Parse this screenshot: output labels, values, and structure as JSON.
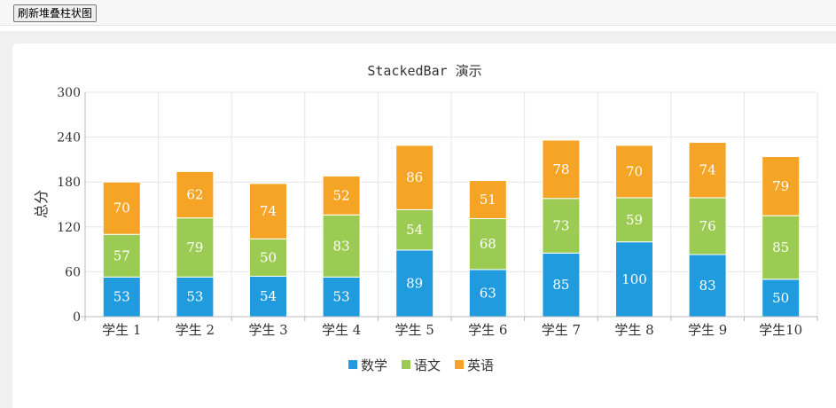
{
  "toolbar": {
    "refresh_label": "刷新堆叠柱状图"
  },
  "chart_data": {
    "type": "bar",
    "stacked": true,
    "title": "StackedBar 演示",
    "xlabel": "",
    "ylabel": "总分",
    "categories": [
      "学生 1",
      "学生 2",
      "学生 3",
      "学生 4",
      "学生 5",
      "学生 6",
      "学生 7",
      "学生 8",
      "学生 9",
      "学生10"
    ],
    "ylim": [
      0,
      300
    ],
    "yticks": [
      "0",
      "60",
      "120",
      "180",
      "240",
      "300"
    ],
    "grid": true,
    "legend_position": "bottom",
    "series": [
      {
        "name": "数学",
        "color": "#1f9bde",
        "values": [
          53,
          53,
          54,
          53,
          89,
          63,
          85,
          100,
          83,
          50
        ]
      },
      {
        "name": "语文",
        "color": "#9bcb52",
        "values": [
          57,
          79,
          50,
          83,
          54,
          68,
          73,
          59,
          76,
          85
        ]
      },
      {
        "name": "英语",
        "color": "#f6a425",
        "values": [
          70,
          62,
          74,
          52,
          86,
          51,
          78,
          70,
          74,
          79
        ]
      }
    ]
  }
}
